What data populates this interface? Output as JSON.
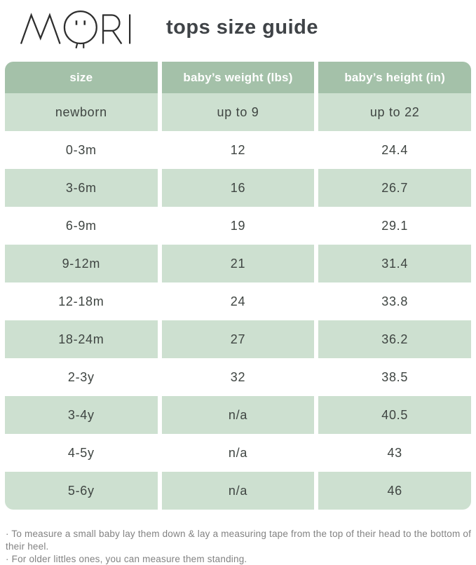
{
  "logo": {
    "brand": "MORI"
  },
  "header": {
    "title": "tops size guide"
  },
  "table": {
    "columns": [
      "size",
      "baby’s weight (lbs)",
      "baby’s height (in)"
    ],
    "column_keys": [
      "size",
      "weight",
      "height"
    ],
    "rows": [
      [
        "newborn",
        "up to 9",
        "up to 22"
      ],
      [
        "0-3m",
        "12",
        "24.4"
      ],
      [
        "3-6m",
        "16",
        "26.7"
      ],
      [
        "6-9m",
        "19",
        "29.1"
      ],
      [
        "9-12m",
        "21",
        "31.4"
      ],
      [
        "12-18m",
        "24",
        "33.8"
      ],
      [
        "18-24m",
        "27",
        "36.2"
      ],
      [
        "2-3y",
        "32",
        "38.5"
      ],
      [
        "3-4y",
        "n/a",
        "40.5"
      ],
      [
        "4-5y",
        "n/a",
        "43"
      ],
      [
        "5-6y",
        "n/a",
        "46"
      ]
    ]
  },
  "notes": [
    "· To measure a small baby lay them down & lay a measuring tape from the top of their head to the bottom of their heel.",
    "· For older littles ones, you can measure them standing."
  ],
  "colors": {
    "header_bg": "#a4c1a9",
    "row_bg": "#cde0d0",
    "cell_text": "#3f4542",
    "title_text": "#3f4347",
    "note_text": "#828282",
    "logo_stroke": "#2e2e2e"
  }
}
